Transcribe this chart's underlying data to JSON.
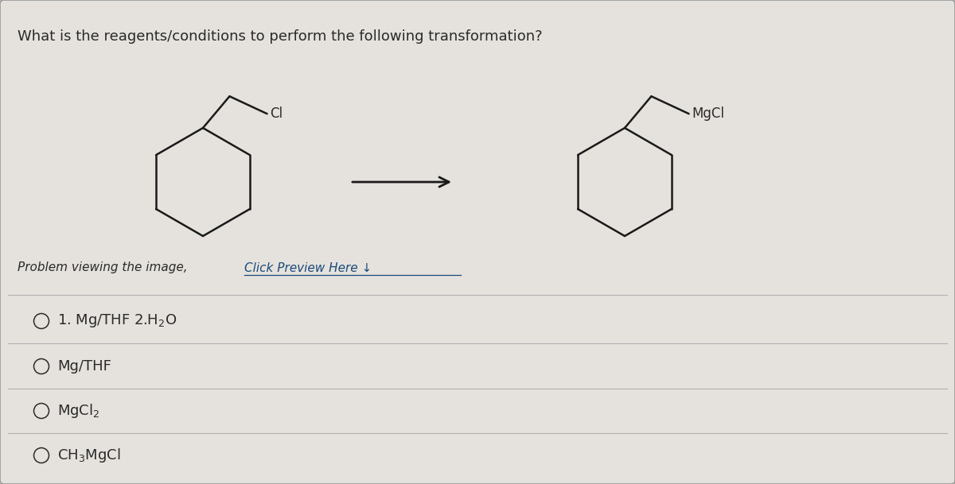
{
  "title": "What is the reagents/conditions to perform the following transformation?",
  "background_color": "#d0cdc8",
  "card_color": "#e5e2dd",
  "question_text": "What is the reagents/conditions to perform the following transformation?",
  "text_color": "#2a2a2a",
  "line_color": "#1a1a1a",
  "option_fontsize": 13,
  "question_fontsize": 13,
  "preview_plain": "Problem viewing the image, ",
  "preview_link": "Click Preview Here ↓",
  "option_labels_latex": [
    "1. Mg/THF 2.H$_2$O",
    "Mg/THF",
    "MgCl$_2$",
    "CH$_3$MgCl"
  ]
}
